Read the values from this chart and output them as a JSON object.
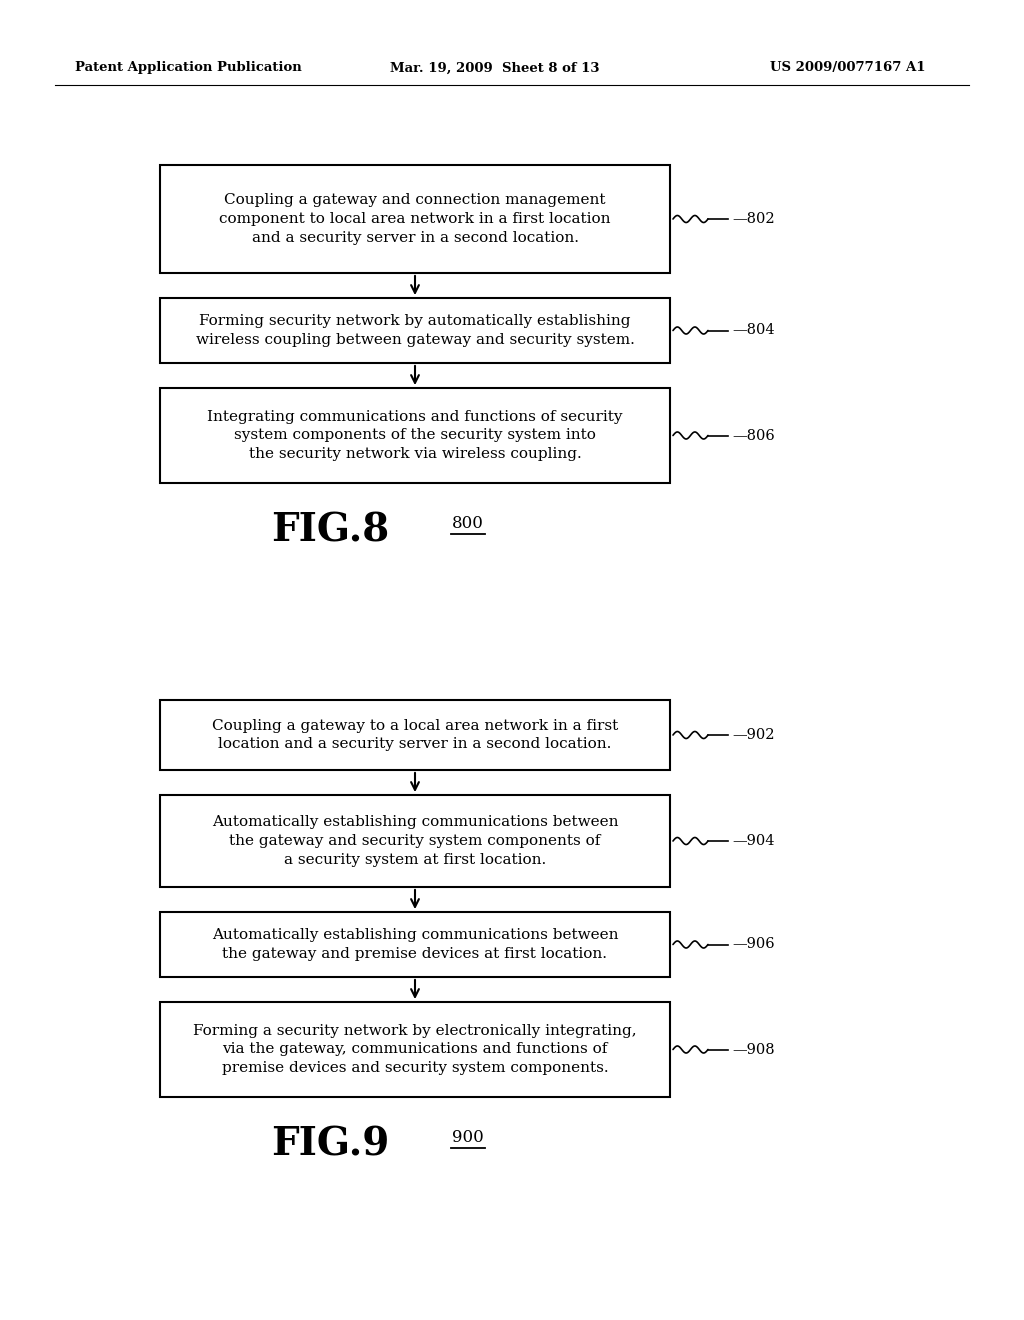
{
  "bg_color": "#ffffff",
  "header_left": "Patent Application Publication",
  "header_mid": "Mar. 19, 2009  Sheet 8 of 13",
  "header_right": "US 2009/0077167 A1",
  "fig8": {
    "label": "FIG.8",
    "ref_label": "800",
    "boxes": [
      {
        "id": "802",
        "lines": [
          "Coupling a gateway and connection management",
          "component to local area network in a first location",
          "and a security server in a second location."
        ]
      },
      {
        "id": "804",
        "lines": [
          "Forming security network by automatically establishing",
          "wireless coupling between gateway and security system."
        ]
      },
      {
        "id": "806",
        "lines": [
          "Integrating communications and functions of security",
          "system components of the security system into",
          "the security network via wireless coupling."
        ]
      }
    ]
  },
  "fig9": {
    "label": "FIG.9",
    "ref_label": "900",
    "boxes": [
      {
        "id": "902",
        "lines": [
          "Coupling a gateway to a local area network in a first",
          "location and a security server in a second location."
        ]
      },
      {
        "id": "904",
        "lines": [
          "Automatically establishing communications between",
          "the gateway and security system components of",
          "a security system at first location."
        ]
      },
      {
        "id": "906",
        "lines": [
          "Automatically establishing communications between",
          "the gateway and premise devices at first location."
        ]
      },
      {
        "id": "908",
        "lines": [
          "Forming a security network by electronically integrating,",
          "via the gateway, communications and functions of",
          "premise devices and security system components."
        ]
      }
    ]
  }
}
